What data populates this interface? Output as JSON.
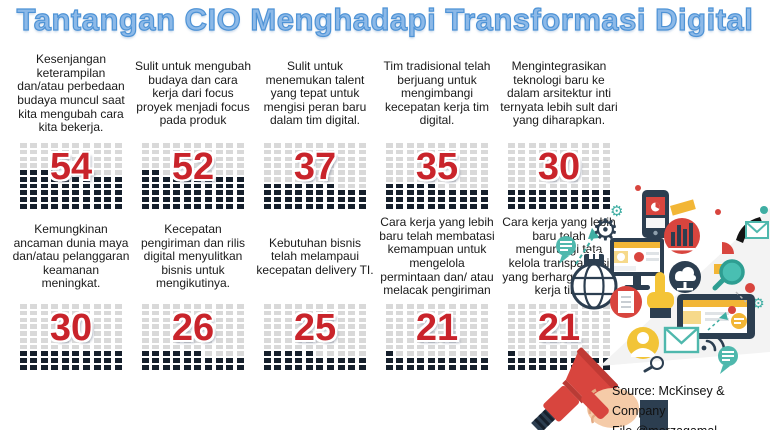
{
  "title": "Tantangan CIO Menghadapi Transformasi Digital",
  "waffle": {
    "columns": 10,
    "rows": 10
  },
  "stats": [
    {
      "text": "Kesenjangan keterampilan dan/atau perbedaan budaya muncul saat kita mengubah cara kita bekerja.",
      "value": 54
    },
    {
      "text": "Sulit untuk mengubah budaya dan cara kerja dari focus proyek menjadi focus pada produk",
      "value": 52
    },
    {
      "text": "Sulit untuk menemukan talent yang tepat untuk mengisi peran baru dalam tim digital.",
      "value": 37
    },
    {
      "text": "Tim tradisional telah berjuang untuk mengimbangi kecepatan kerja tim digital.",
      "value": 35
    },
    {
      "text": "Mengintegrasikan teknologi baru ke dalam arsitektur inti ternyata lebih sult dari yang diharapkan.",
      "value": 30
    },
    {
      "text": "Kemungkinan ancaman dunia maya dan/atau pelanggaran keamanan meningkat.",
      "value": 30
    },
    {
      "text": "Kecepatan pengiriman dan rilis digital menyulitkan bisnis untuk mengikutinya.",
      "value": 26
    },
    {
      "text": "Kebutuhan bisnis telah melampaui kecepatan delivery TI.",
      "value": 25
    },
    {
      "text": "Cara kerja yang lebih baru telah membatasi kemampuan untuk mengelola permintaan dan/ atau melacak pengiriman",
      "value": 21
    },
    {
      "text": "Cara kerja yang lebih baru telah mengurangi tata kelola transparansi yang berharga dalam kerja tim.",
      "value": 21
    }
  ],
  "footer": {
    "source": "Source: McKinsey & Company",
    "file": "File @merzagamal"
  },
  "colors": {
    "title_fill": "#8CB9E8",
    "title_outline": "#4E93D6",
    "number_red": "#C9242B",
    "dot_dark": "#16202C",
    "dot_light": "#D9D9D9",
    "accent_navy": "#2C3E50",
    "accent_red": "#D8453E",
    "accent_teal": "#3FAEA3",
    "accent_yellow": "#F2B636",
    "skin": "#F5CBA8"
  },
  "illustration": {
    "icons": [
      "megaphone",
      "hand-holding-megaphone",
      "beam",
      "smartphone",
      "desktop-monitor",
      "bar-chart",
      "cloud-download",
      "globe",
      "magnifier",
      "envelope",
      "gear",
      "pointer-hand",
      "document",
      "tablet",
      "person",
      "chat-bubble",
      "wifi",
      "phone-receiver",
      "growth-arrow",
      "archive-box"
    ]
  },
  "chart_data": {
    "type": "waffle",
    "title": "Tantangan CIO Menghadapi Transformasi Digital",
    "unit": "percent of 100-square waffle grid",
    "grid": {
      "rows": 10,
      "cols": 10,
      "total": 100
    },
    "legend": "none",
    "filled_color": "#16202C",
    "empty_color": "#D9D9D9",
    "value_label_color": "#C9242B",
    "series": [
      {
        "label": "Kesenjangan keterampilan dan/atau perbedaan budaya muncul saat kita mengubah cara kita bekerja.",
        "value": 54
      },
      {
        "label": "Sulit untuk mengubah budaya dan cara kerja dari focus proyek menjadi focus pada produk",
        "value": 52
      },
      {
        "label": "Sulit untuk menemukan talent yang tepat untuk mengisi peran baru dalam tim digital.",
        "value": 37
      },
      {
        "label": "Tim tradisional telah berjuang untuk mengimbangi kecepatan kerja tim digital.",
        "value": 35
      },
      {
        "label": "Mengintegrasikan teknologi baru ke dalam arsitektur inti ternyata lebih sult dari yang diharapkan.",
        "value": 30
      },
      {
        "label": "Kemungkinan ancaman dunia maya dan/atau pelanggaran keamanan meningkat.",
        "value": 30
      },
      {
        "label": "Kecepatan pengiriman dan rilis digital menyulitkan bisnis untuk mengikutinya.",
        "value": 26
      },
      {
        "label": "Kebutuhan bisnis telah melampaui kecepatan delivery TI.",
        "value": 25
      },
      {
        "label": "Cara kerja yang lebih baru telah membatasi kemampuan untuk mengelola permintaan dan/ atau melacak pengiriman",
        "value": 21
      },
      {
        "label": "Cara kerja yang lebih baru telah mengurangi tata kelola transparansi yang berharga dalam kerja tim.",
        "value": 21
      }
    ]
  }
}
